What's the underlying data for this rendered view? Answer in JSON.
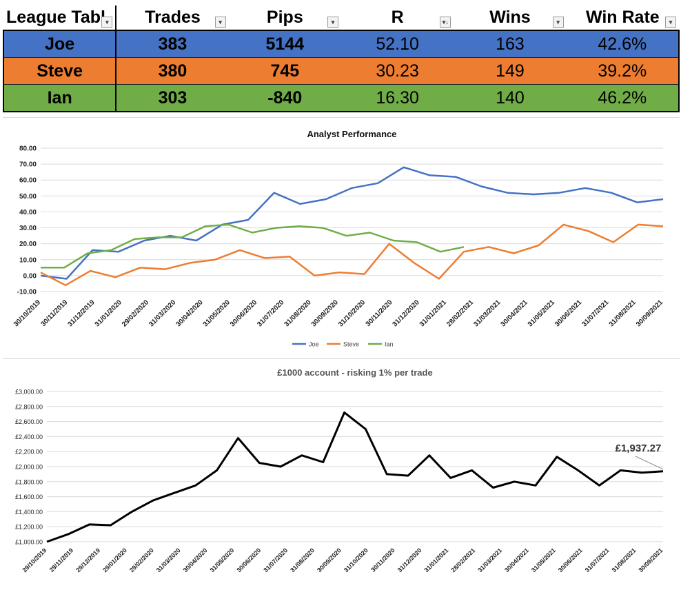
{
  "league_table": {
    "headers": [
      "League Tabl",
      "Trades",
      "Pips",
      "R",
      "Wins",
      "Win Rate"
    ],
    "rows": [
      {
        "name": "Joe",
        "trades": "383",
        "pips": "5144",
        "r": "52.10",
        "wins": "163",
        "win_rate": "42.6%"
      },
      {
        "name": "Steve",
        "trades": "380",
        "pips": "745",
        "r": "30.23",
        "wins": "149",
        "win_rate": "39.2%"
      },
      {
        "name": "Ian",
        "trades": "303",
        "pips": "-840",
        "r": "16.30",
        "wins": "140",
        "win_rate": "46.2%"
      }
    ],
    "sort_icon": "filter-sort-icon",
    "filter_icon": "filter-dropdown-icon",
    "colors": {
      "joe": "#4472c4",
      "steve": "#ed7d31",
      "ian": "#70ad47"
    }
  },
  "chart_data": [
    {
      "type": "line",
      "title": "Analyst Performance",
      "xlabel": "",
      "ylabel": "",
      "ylim": [
        -10,
        80
      ],
      "yticks": [
        "80.00",
        "70.00",
        "60.00",
        "50.00",
        "40.00",
        "30.00",
        "20.00",
        "10.00",
        "0.00",
        "-10.00"
      ],
      "x_ticks": [
        "30/10/2019",
        "30/11/2019",
        "31/12/2019",
        "31/01/2020",
        "29/02/2020",
        "31/03/2020",
        "30/04/2020",
        "31/05/2020",
        "30/06/2020",
        "31/07/2020",
        "31/08/2020",
        "30/09/2020",
        "31/10/2020",
        "30/11/2020",
        "31/12/2020",
        "31/01/2021",
        "28/02/2021",
        "31/03/2021",
        "30/04/2021",
        "31/05/2021",
        "30/06/2021",
        "31/07/2021",
        "31/08/2021",
        "30/09/2021"
      ],
      "grid": true,
      "legend": "bottom",
      "series": [
        {
          "name": "Joe",
          "color": "#4472c4",
          "values": [
            0,
            -2,
            16,
            15,
            22,
            25,
            22,
            32,
            35,
            52,
            45,
            48,
            55,
            58,
            68,
            63,
            62,
            56,
            52,
            51,
            52,
            55,
            52,
            46,
            48
          ]
        },
        {
          "name": "Steve",
          "color": "#ed7d31",
          "values": [
            2,
            -6,
            3,
            -1,
            5,
            4,
            8,
            10,
            16,
            11,
            12,
            0,
            2,
            1,
            20,
            8,
            -2,
            15,
            18,
            14,
            19,
            32,
            28,
            21,
            32,
            31
          ]
        },
        {
          "name": "Ian",
          "color": "#70ad47",
          "values": [
            5,
            5,
            14,
            16,
            23,
            24,
            24,
            31,
            32,
            27,
            30,
            31,
            30,
            25,
            27,
            22,
            21,
            15,
            18
          ]
        }
      ]
    },
    {
      "type": "line",
      "title": "£1000 account - risking 1% per trade",
      "xlabel": "",
      "ylabel": "",
      "ylim": [
        1000,
        3000
      ],
      "yticks": [
        "£3,000.00",
        "£2,800.00",
        "£2,600.00",
        "£2,400.00",
        "£2,200.00",
        "£2,000.00",
        "£1,800.00",
        "£1,600.00",
        "£1,400.00",
        "£1,200.00",
        "£1,000.00"
      ],
      "x_ticks": [
        "29/10/2019",
        "29/11/2019",
        "29/12/2019",
        "29/01/2020",
        "29/02/2020",
        "31/03/2020",
        "30/04/2020",
        "31/05/2020",
        "30/06/2020",
        "31/07/2020",
        "31/08/2020",
        "30/09/2020",
        "31/10/2020",
        "30/11/2020",
        "31/12/2020",
        "31/01/2021",
        "28/02/2021",
        "31/03/2021",
        "30/04/2021",
        "31/05/2021",
        "30/06/2021",
        "31/07/2021",
        "31/08/2021",
        "30/09/2021"
      ],
      "grid": true,
      "annotation": "£1,937.27",
      "series": [
        {
          "name": "Account",
          "color": "#000000",
          "values": [
            1000,
            1100,
            1230,
            1220,
            1400,
            1550,
            1650,
            1750,
            1950,
            2380,
            2050,
            2000,
            2150,
            2060,
            2720,
            2500,
            1900,
            1880,
            2150,
            1850,
            1950,
            1720,
            1800,
            1750,
            2130,
            1950,
            1750,
            1950,
            1920,
            1937.27
          ]
        }
      ]
    }
  ]
}
